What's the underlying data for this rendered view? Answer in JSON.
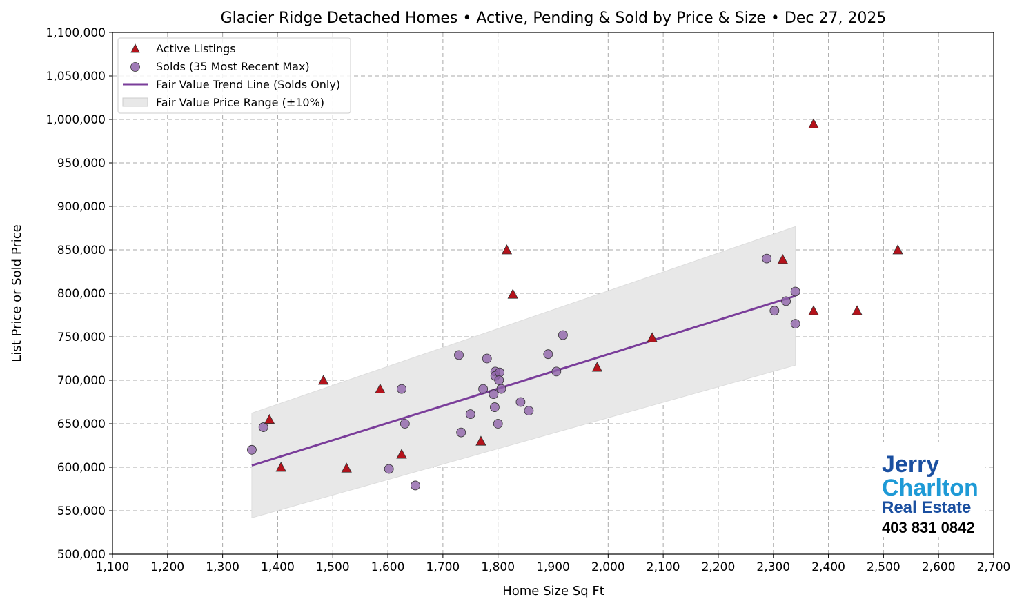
{
  "chart_data": {
    "type": "scatter",
    "title": "Glacier Ridge Detached Homes • Active, Pending & Sold by Price & Size • Dec 27, 2025",
    "xlabel": "Home Size Sq Ft",
    "ylabel": "List Price or Sold Price",
    "xlim": [
      1100,
      2700
    ],
    "ylim": [
      500000,
      1100000
    ],
    "xticks": [
      "1,100",
      "1,200",
      "1,300",
      "1,400",
      "1,500",
      "1,600",
      "1,700",
      "1,800",
      "1,900",
      "2,000",
      "2,100",
      "2,200",
      "2,300",
      "2,400",
      "2,500",
      "2,600",
      "2,700"
    ],
    "yticks": [
      "500,000",
      "550,000",
      "600,000",
      "650,000",
      "700,000",
      "750,000",
      "800,000",
      "850,000",
      "900,000",
      "950,000",
      "1,000,000",
      "1,050,000",
      "1,100,000"
    ],
    "grid": true,
    "legend_position": "top-left",
    "series": [
      {
        "name": "Active Listings",
        "marker": "triangle",
        "color": "#b5121b",
        "points": [
          [
            1385,
            655000
          ],
          [
            1406,
            600000
          ],
          [
            1483,
            700000
          ],
          [
            1525,
            599000
          ],
          [
            1586,
            690000
          ],
          [
            1625,
            615000
          ],
          [
            1769,
            630000
          ],
          [
            1816,
            850000
          ],
          [
            1827,
            799000
          ],
          [
            1980,
            715000
          ],
          [
            2080,
            749000
          ],
          [
            2317,
            839000
          ],
          [
            2373,
            995000
          ],
          [
            2373,
            780000
          ],
          [
            2452,
            780000
          ],
          [
            2526,
            850000
          ]
        ]
      },
      {
        "name": "Solds (35 Most Recent Max)",
        "marker": "circle",
        "color": "#8e63a9",
        "points": [
          [
            1353,
            620000
          ],
          [
            1374,
            646000
          ],
          [
            1602,
            598000
          ],
          [
            1625,
            690000
          ],
          [
            1631,
            650000
          ],
          [
            1650,
            579000
          ],
          [
            1729,
            729000
          ],
          [
            1733,
            640000
          ],
          [
            1750,
            661000
          ],
          [
            1773,
            690000
          ],
          [
            1780,
            725000
          ],
          [
            1792,
            684000
          ],
          [
            1794,
            669000
          ],
          [
            1795,
            710000
          ],
          [
            1795,
            705000
          ],
          [
            1803,
            709000
          ],
          [
            1802,
            700000
          ],
          [
            1806,
            690000
          ],
          [
            1800,
            650000
          ],
          [
            1841,
            675000
          ],
          [
            1856,
            665000
          ],
          [
            1891,
            730000
          ],
          [
            1906,
            710000
          ],
          [
            1918,
            752000
          ],
          [
            2288,
            840000
          ],
          [
            2302,
            780000
          ],
          [
            2323,
            791000
          ],
          [
            2340,
            802000
          ],
          [
            2340,
            765000
          ]
        ]
      },
      {
        "name": "Fair Value Trend Line (Solds Only)",
        "type": "line",
        "color": "#7a3d9a",
        "points": [
          [
            1353,
            602000
          ],
          [
            2340,
            797000
          ]
        ]
      },
      {
        "name": "Fair Value Price Range (±10%)",
        "type": "band",
        "color": "#e8e8e8",
        "pct": 10
      }
    ]
  },
  "logo": {
    "line1": "Jerry",
    "line2": "Charlton",
    "line3": "Real Estate",
    "phone": "403 831 0842"
  }
}
